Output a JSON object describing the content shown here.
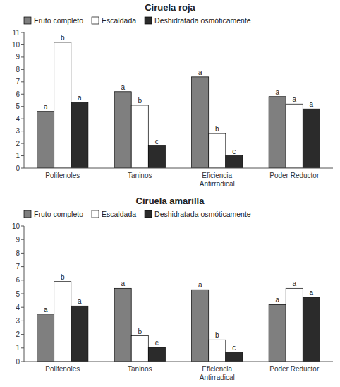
{
  "chart_data": [
    {
      "type": "bar",
      "title": "Ciruela roja",
      "categories": [
        "Polifenoles",
        "Taninos",
        "Eficiencia\nAntirradical",
        "Poder Reductor"
      ],
      "series": [
        {
          "name": "Fruto completo",
          "color": "#7f7f7f",
          "values": [
            4.6,
            6.2,
            7.4,
            5.8
          ],
          "value_labels": [
            "a",
            "a",
            "a",
            "a"
          ]
        },
        {
          "name": "Escaldada",
          "color": "#ffffff",
          "values": [
            10.2,
            5.1,
            2.8,
            5.2
          ],
          "value_labels": [
            "b",
            "b",
            "b",
            "a"
          ]
        },
        {
          "name": "Deshidratada osmóticamente",
          "color": "#2b2b2b",
          "values": [
            5.3,
            1.8,
            1.0,
            4.8
          ],
          "value_labels": [
            "a",
            "c",
            "c",
            "a"
          ]
        }
      ],
      "ylim": [
        0,
        11
      ],
      "yticks": [
        0,
        1,
        2,
        3,
        4,
        5,
        6,
        7,
        8,
        9,
        10,
        11
      ],
      "legend": "upper left"
    },
    {
      "type": "bar",
      "title": "Ciruela amarilla",
      "categories": [
        "Polifenoles",
        "Taninos",
        "Eficiencia\nAntirradical",
        "Poder Reductor"
      ],
      "series": [
        {
          "name": "Fruto completo",
          "color": "#7f7f7f",
          "values": [
            3.5,
            5.4,
            5.3,
            4.2
          ],
          "value_labels": [
            "a",
            "a",
            "a",
            "a"
          ]
        },
        {
          "name": "Escaldada",
          "color": "#ffffff",
          "values": [
            5.9,
            1.9,
            1.6,
            5.4
          ],
          "value_labels": [
            "b",
            "b",
            "b",
            "a"
          ]
        },
        {
          "name": "Deshidratada osmóticamente",
          "color": "#2b2b2b",
          "values": [
            4.1,
            1.05,
            0.7,
            4.75
          ],
          "value_labels": [
            "a",
            "c",
            "c",
            "a"
          ]
        }
      ],
      "ylim": [
        0,
        10
      ],
      "yticks": [
        0,
        1,
        2,
        3,
        4,
        5,
        6,
        7,
        8,
        9,
        10
      ],
      "legend": "upper left"
    }
  ]
}
